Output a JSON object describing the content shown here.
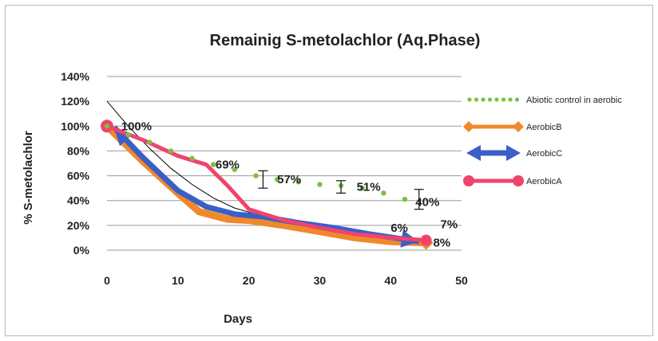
{
  "chart_data": {
    "type": "line",
    "title": "Remainig S-metolachlor  (Aq.Phase)",
    "xlabel": "Days",
    "ylabel": "% S-metolachlor",
    "xlim": [
      0,
      50
    ],
    "ylim": [
      0,
      1.4
    ],
    "x_ticks": [
      0,
      10,
      20,
      30,
      40,
      50
    ],
    "y_ticks": [
      "0%",
      "20%",
      "40%",
      "60%",
      "80%",
      "100%",
      "120%",
      "140%"
    ],
    "y_tick_values": [
      0,
      0.2,
      0.4,
      0.6,
      0.8,
      1.0,
      1.2,
      1.4
    ],
    "grid": "horizontal",
    "legend_position": "right",
    "series": [
      {
        "name": "Abiotic control in aerobic",
        "color": "#7ac143",
        "style": "dotted",
        "x": [
          0,
          3,
          6,
          9,
          12,
          15,
          18,
          21,
          24,
          27,
          30,
          33,
          36,
          39,
          42
        ],
        "y": [
          1.0,
          0.93,
          0.87,
          0.8,
          0.74,
          0.69,
          0.65,
          0.6,
          0.57,
          0.55,
          0.53,
          0.52,
          0.5,
          0.46,
          0.41
        ]
      },
      {
        "name": "AerobicB",
        "color": "#f0892a",
        "style": "line",
        "x": [
          0,
          5,
          10,
          13,
          17,
          20,
          25,
          30,
          35,
          40,
          45
        ],
        "y": [
          1.0,
          0.72,
          0.46,
          0.31,
          0.25,
          0.24,
          0.2,
          0.15,
          0.1,
          0.07,
          0.06
        ]
      },
      {
        "name": "AerobicC",
        "color": "#3a5fc8",
        "style": "arrow",
        "x": [
          1,
          5,
          10,
          14,
          18,
          22,
          27,
          32,
          37,
          44
        ],
        "y": [
          0.99,
          0.75,
          0.48,
          0.35,
          0.29,
          0.27,
          0.22,
          0.18,
          0.13,
          0.07
        ]
      },
      {
        "name": "AerobicA",
        "color": "#f0436e",
        "style": "line",
        "x": [
          0,
          5,
          10,
          14,
          17,
          20,
          25,
          30,
          35,
          40,
          45
        ],
        "y": [
          1.0,
          0.89,
          0.76,
          0.69,
          0.52,
          0.33,
          0.24,
          0.18,
          0.13,
          0.1,
          0.08
        ]
      },
      {
        "name": "",
        "color": "#000000",
        "style": "thin",
        "x": [
          0,
          3,
          6,
          9,
          12,
          15,
          18,
          21,
          24,
          27,
          30,
          35,
          40,
          45
        ],
        "y": [
          1.2,
          1.0,
          0.82,
          0.66,
          0.53,
          0.42,
          0.34,
          0.29,
          0.25,
          0.2,
          0.16,
          0.11,
          0.08,
          0.06
        ]
      }
    ],
    "error_bars": [
      {
        "x": 22,
        "y": 0.57,
        "low": 0.5,
        "high": 0.64
      },
      {
        "x": 33,
        "y": 0.51,
        "low": 0.46,
        "high": 0.56
      },
      {
        "x": 44,
        "y": 0.41,
        "low": 0.33,
        "high": 0.49
      }
    ],
    "annotations": [
      {
        "text": "100%",
        "x": 2.0,
        "y": 1.0
      },
      {
        "text": "69%",
        "x": 15.3,
        "y": 0.69
      },
      {
        "text": "57%",
        "x": 24.0,
        "y": 0.57
      },
      {
        "text": "51%",
        "x": 35.2,
        "y": 0.51
      },
      {
        "text": "40%",
        "x": 43.5,
        "y": 0.39
      },
      {
        "text": "6%",
        "x": 40.0,
        "y": 0.18
      },
      {
        "text": "7%",
        "x": 47.0,
        "y": 0.21
      },
      {
        "text": "8%",
        "x": 46.0,
        "y": 0.06
      }
    ]
  }
}
